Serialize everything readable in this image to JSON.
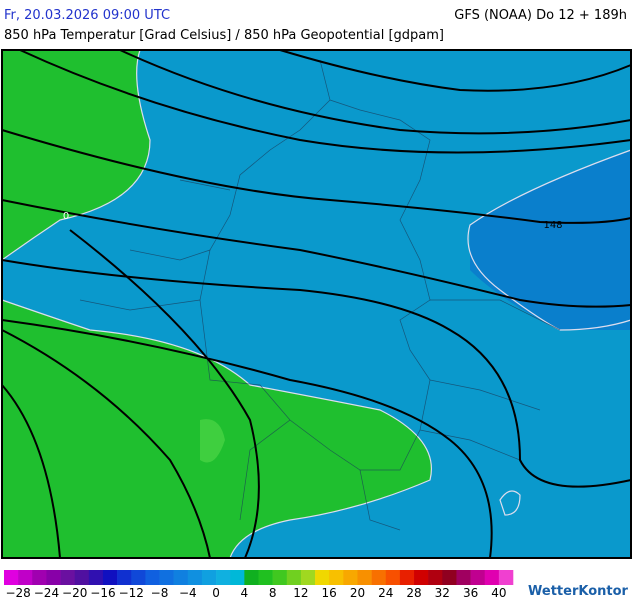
{
  "header": {
    "datetime": "Fr, 20.03.2026 09:00 UTC",
    "model": "GFS (NOAA) Do 12 + 189h",
    "subtitle": "850 hPa Temperatur [Grad Celsius] / 850 hPa Geopotential [gdpam]"
  },
  "map": {
    "isotherm_label": "0",
    "isohypse_label": "148"
  },
  "colorbar": {
    "ticks": [
      {
        "value": -28,
        "label": "−28"
      },
      {
        "value": -24,
        "label": "−24"
      },
      {
        "value": -20,
        "label": "−20"
      },
      {
        "value": -16,
        "label": "−16"
      },
      {
        "value": -12,
        "label": "−12"
      },
      {
        "value": -8,
        "label": "−8"
      },
      {
        "value": -4,
        "label": "−4"
      },
      0,
      4,
      8,
      12,
      16,
      20,
      24,
      28,
      32,
      36,
      40
    ]
  },
  "logo": "WetterKontor"
}
